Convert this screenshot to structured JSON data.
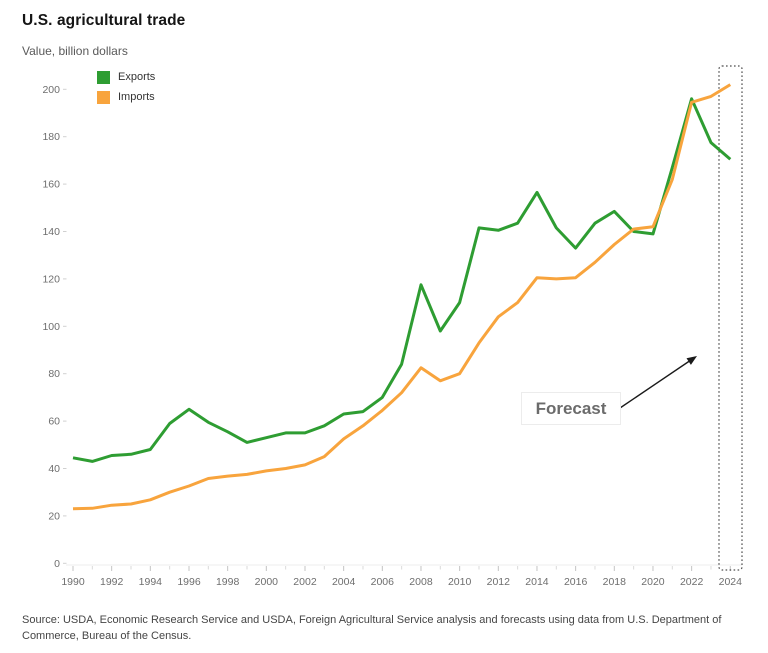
{
  "header": {
    "title": "U.S. agricultural trade",
    "subtitle": "Value, billion dollars"
  },
  "legend": {
    "items": [
      {
        "label": "Exports",
        "color": "#2e9d32"
      },
      {
        "label": "Imports",
        "color": "#f8a43d"
      }
    ]
  },
  "annotation": {
    "forecast_label": "Forecast"
  },
  "footer": {
    "source": "Source: USDA, Economic Research Service and USDA, Foreign Agricultural Service analysis and forecasts using data from U.S. Department of Commerce, Bureau of the Census."
  },
  "chart_data": {
    "type": "line",
    "title": "U.S. agricultural trade",
    "ylabel": "Value, billion dollars",
    "xlabel": "",
    "grid": false,
    "legend_position": "top-left",
    "ylim": [
      0,
      200
    ],
    "yticks": [
      0,
      20,
      40,
      60,
      80,
      100,
      120,
      140,
      160,
      180,
      200
    ],
    "xticks": [
      1990,
      1992,
      1994,
      1996,
      1998,
      2000,
      2002,
      2004,
      2006,
      2008,
      2010,
      2012,
      2014,
      2016,
      2018,
      2020,
      2022,
      2024
    ],
    "x": [
      1990,
      1991,
      1992,
      1993,
      1994,
      1995,
      1996,
      1997,
      1998,
      1999,
      2000,
      2001,
      2002,
      2003,
      2004,
      2005,
      2006,
      2007,
      2008,
      2009,
      2010,
      2011,
      2012,
      2013,
      2014,
      2015,
      2016,
      2017,
      2018,
      2019,
      2020,
      2021,
      2022,
      2023,
      2024
    ],
    "series": [
      {
        "name": "Exports",
        "color": "#2e9d32",
        "values": [
          44.5,
          43,
          45.5,
          46,
          48,
          59,
          65,
          59.5,
          55.5,
          51,
          53,
          55,
          55,
          58,
          63,
          64,
          70,
          84,
          117.5,
          98,
          110,
          141.5,
          140.5,
          143.5,
          156.5,
          141.5,
          133,
          143.5,
          148.5,
          140,
          139,
          167,
          196,
          177.5,
          170.5
        ]
      },
      {
        "name": "Imports",
        "color": "#f8a43d",
        "values": [
          23,
          23.2,
          24.5,
          25,
          26.8,
          30,
          32.6,
          35.8,
          36.8,
          37.5,
          39,
          40,
          41.5,
          45,
          52.5,
          58,
          64.5,
          72,
          82.5,
          77,
          80,
          93,
          104,
          110,
          120.5,
          120,
          120.5,
          127,
          134.5,
          141,
          142,
          162,
          194.5,
          197,
          202
        ]
      }
    ],
    "forecast_year": 2024
  }
}
